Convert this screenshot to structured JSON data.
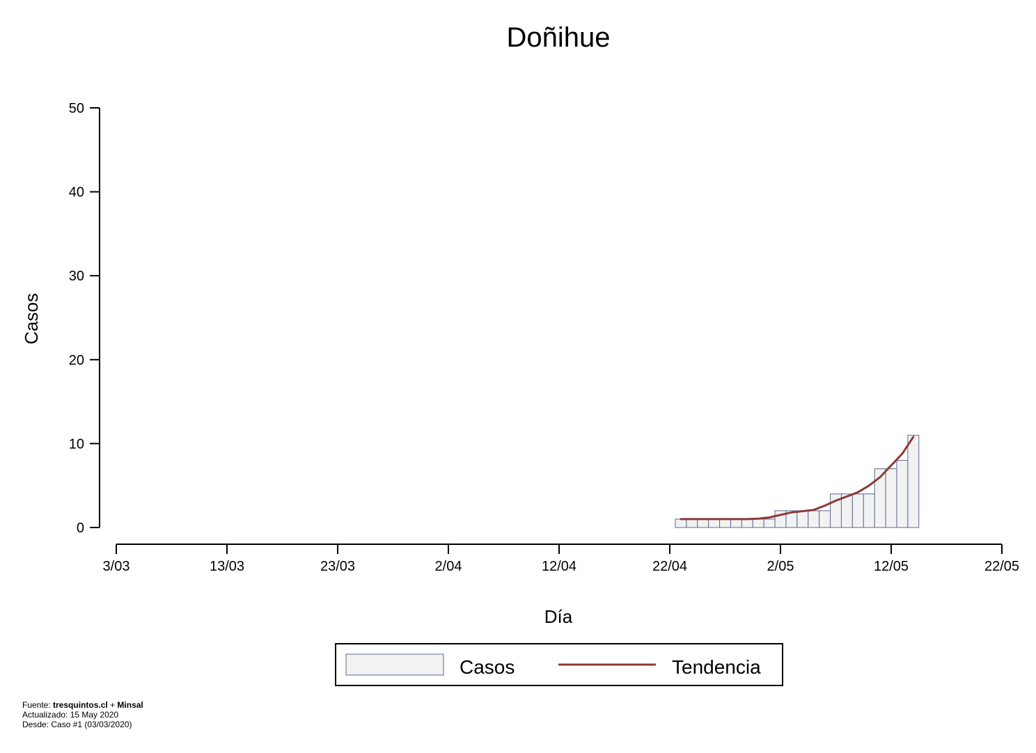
{
  "chart_data": {
    "type": "bar",
    "title": "Doñihue",
    "xlabel": "Día",
    "ylabel": "Casos",
    "ylim": [
      0,
      50
    ],
    "yticks": [
      0,
      10,
      20,
      30,
      40,
      50
    ],
    "xticks": [
      "3/03",
      "13/03",
      "23/03",
      "2/04",
      "12/04",
      "22/04",
      "2/05",
      "12/05",
      "22/05"
    ],
    "grid": false,
    "legend_position": "bottom",
    "dates": [
      "23/04",
      "24/04",
      "25/04",
      "26/04",
      "27/04",
      "28/04",
      "29/04",
      "30/04",
      "1/05",
      "2/05",
      "3/05",
      "4/05",
      "5/05",
      "6/05",
      "7/05",
      "8/05",
      "9/05",
      "10/05",
      "11/05",
      "12/05",
      "13/05",
      "14/05"
    ],
    "series": [
      {
        "name": "Casos",
        "type": "bar",
        "color": "#f2f2f2",
        "edge_color": "#5a6a96",
        "values": [
          1,
          1,
          1,
          1,
          1,
          1,
          1,
          1,
          1,
          2,
          2,
          2,
          2,
          2,
          4,
          4,
          4,
          4,
          7,
          7,
          8,
          11
        ]
      },
      {
        "name": "Tendencia",
        "type": "line",
        "color": "#8b3a3a",
        "values": [
          1,
          1,
          1,
          1,
          1,
          1,
          1,
          1.05,
          1.2,
          1.5,
          1.8,
          1.95,
          2.1,
          2.6,
          3.2,
          3.7,
          4.2,
          5.0,
          6.0,
          7.4,
          8.8,
          10.8
        ]
      }
    ]
  },
  "footer": {
    "source_prefix": "Fuente: ",
    "source_a": "tresquintos.cl",
    "source_sep": " + ",
    "source_b": "Minsal",
    "updated": "Actualizado: 15 May 2020",
    "since": "Desde: Caso #1  (03/03/2020)"
  }
}
